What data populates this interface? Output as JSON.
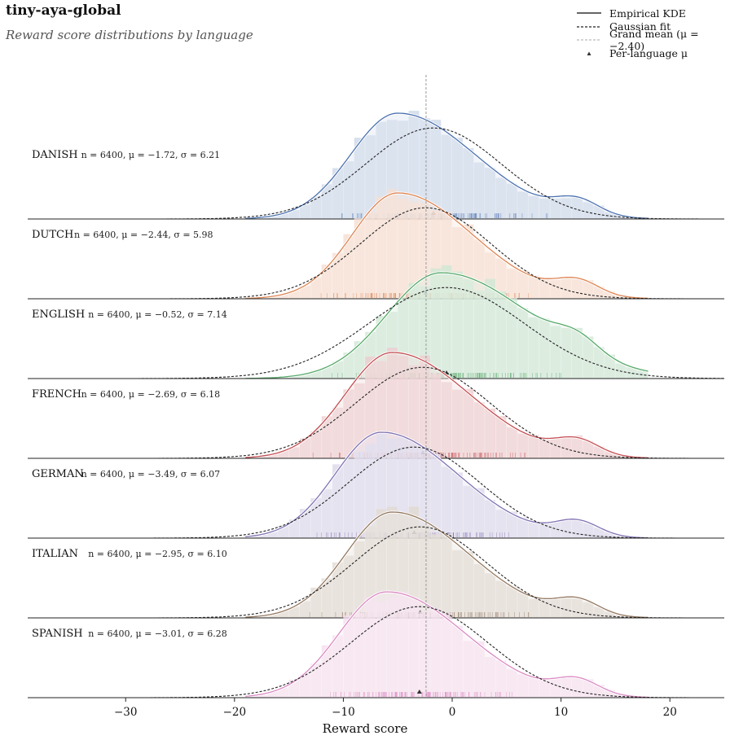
{
  "title": "tiny-aya-global",
  "subtitle": "Reward score distributions by language",
  "chart_data": {
    "type": "ridgeline",
    "xlabel": "Reward score",
    "xlim": [
      -39,
      25
    ],
    "xticks": [
      -30,
      -20,
      -10,
      0,
      10,
      20
    ],
    "xtick_labels": [
      "−30",
      "−20",
      "−10",
      "0",
      "10",
      "20"
    ],
    "grand_mean": -2.4,
    "legend_position": "top-right",
    "legend": {
      "kde": "Empirical KDE",
      "gauss": "Gaussian fit",
      "grand_mean": "Grand mean (μ = −2.40)",
      "per_lang_mu": "Per-language μ"
    },
    "series": [
      {
        "name": "DANISH",
        "stats": "n = 6400,  μ = −1.72,  σ = 6.21",
        "n": 6400,
        "mean": -1.72,
        "std": 6.21,
        "mode": -5.0,
        "mode2": 11.5,
        "color": "#4c72b0"
      },
      {
        "name": "DUTCH",
        "stats": "n = 6400,  μ = −2.44,  σ = 5.98",
        "n": 6400,
        "mean": -2.44,
        "std": 5.98,
        "mode": -5.0,
        "mode2": 11.5,
        "color": "#dd8452"
      },
      {
        "name": "ENGLISH",
        "stats": "n = 6400,  μ = −0.52,  σ = 7.14",
        "n": 6400,
        "mean": -0.52,
        "std": 7.14,
        "mode": -1.0,
        "mode2": 11.5,
        "color": "#55a868"
      },
      {
        "name": "FRENCH",
        "stats": "n = 6400,  μ = −2.69,  σ = 6.18",
        "n": 6400,
        "mean": -2.69,
        "std": 6.18,
        "mode": -5.5,
        "mode2": 11.5,
        "color": "#c44e52"
      },
      {
        "name": "GERMAN",
        "stats": "n = 6400,  μ = −3.49,  σ = 6.07",
        "n": 6400,
        "mean": -3.49,
        "std": 6.07,
        "mode": -6.5,
        "mode2": 11.5,
        "color": "#8172b3"
      },
      {
        "name": "ITALIAN",
        "stats": "n = 6400,  μ = −2.95,  σ = 6.10",
        "n": 6400,
        "mean": -2.95,
        "std": 6.1,
        "mode": -5.5,
        "mode2": 11.5,
        "color": "#937860"
      },
      {
        "name": "SPANISH",
        "stats": "n = 6400,  μ = −3.01,  σ = 6.28",
        "n": 6400,
        "mean": -3.01,
        "std": 6.28,
        "mode": -6.0,
        "mode2": 11.5,
        "color": "#da8bc3"
      }
    ]
  }
}
